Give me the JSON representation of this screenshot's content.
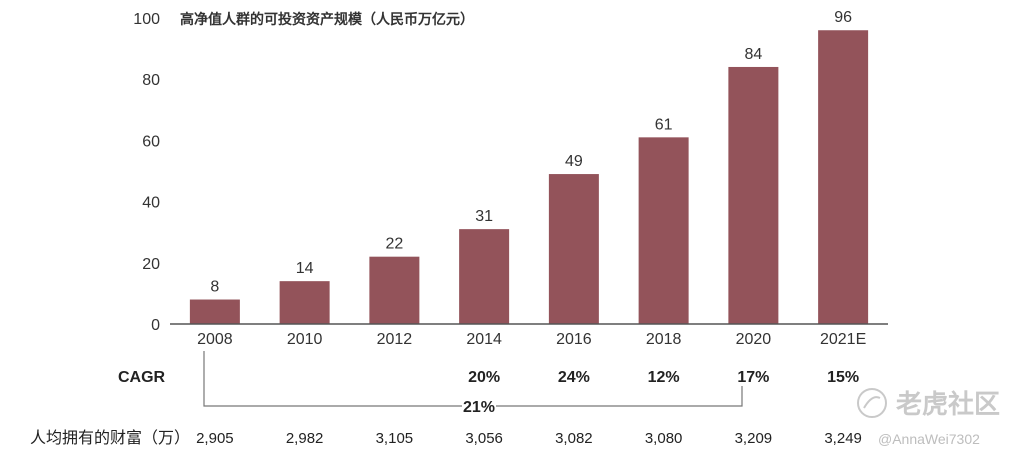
{
  "chart_data": {
    "type": "bar",
    "title": "高净值人群的可投资资产规模（人民币万亿元）",
    "categories": [
      "2008",
      "2010",
      "2012",
      "2014",
      "2016",
      "2018",
      "2020",
      "2021E"
    ],
    "values": [
      8,
      14,
      22,
      31,
      49,
      61,
      84,
      96
    ],
    "value_labels": [
      "8",
      "14",
      "22",
      "31",
      "49",
      "61",
      "84",
      "96"
    ],
    "ylim": [
      0,
      100
    ],
    "yticks": [
      "0",
      "20",
      "40",
      "60",
      "80",
      "100"
    ],
    "bar_color": "#93535a",
    "grid": false,
    "cagr_label": "CAGR",
    "cagr_values": [
      "",
      "",
      "",
      "20%",
      "24%",
      "12%",
      "17%",
      "15%"
    ],
    "overall_cagr": "21%",
    "wealth_label": "人均拥有的财富（万）",
    "wealth_values": [
      "2,905",
      "2,982",
      "3,105",
      "3,056",
      "3,082",
      "3,080",
      "3,209",
      "3,249"
    ]
  },
  "watermark": {
    "brand": "老虎社区",
    "handle": "@AnnaWei7302",
    "icon": "tiger-logo-icon"
  }
}
